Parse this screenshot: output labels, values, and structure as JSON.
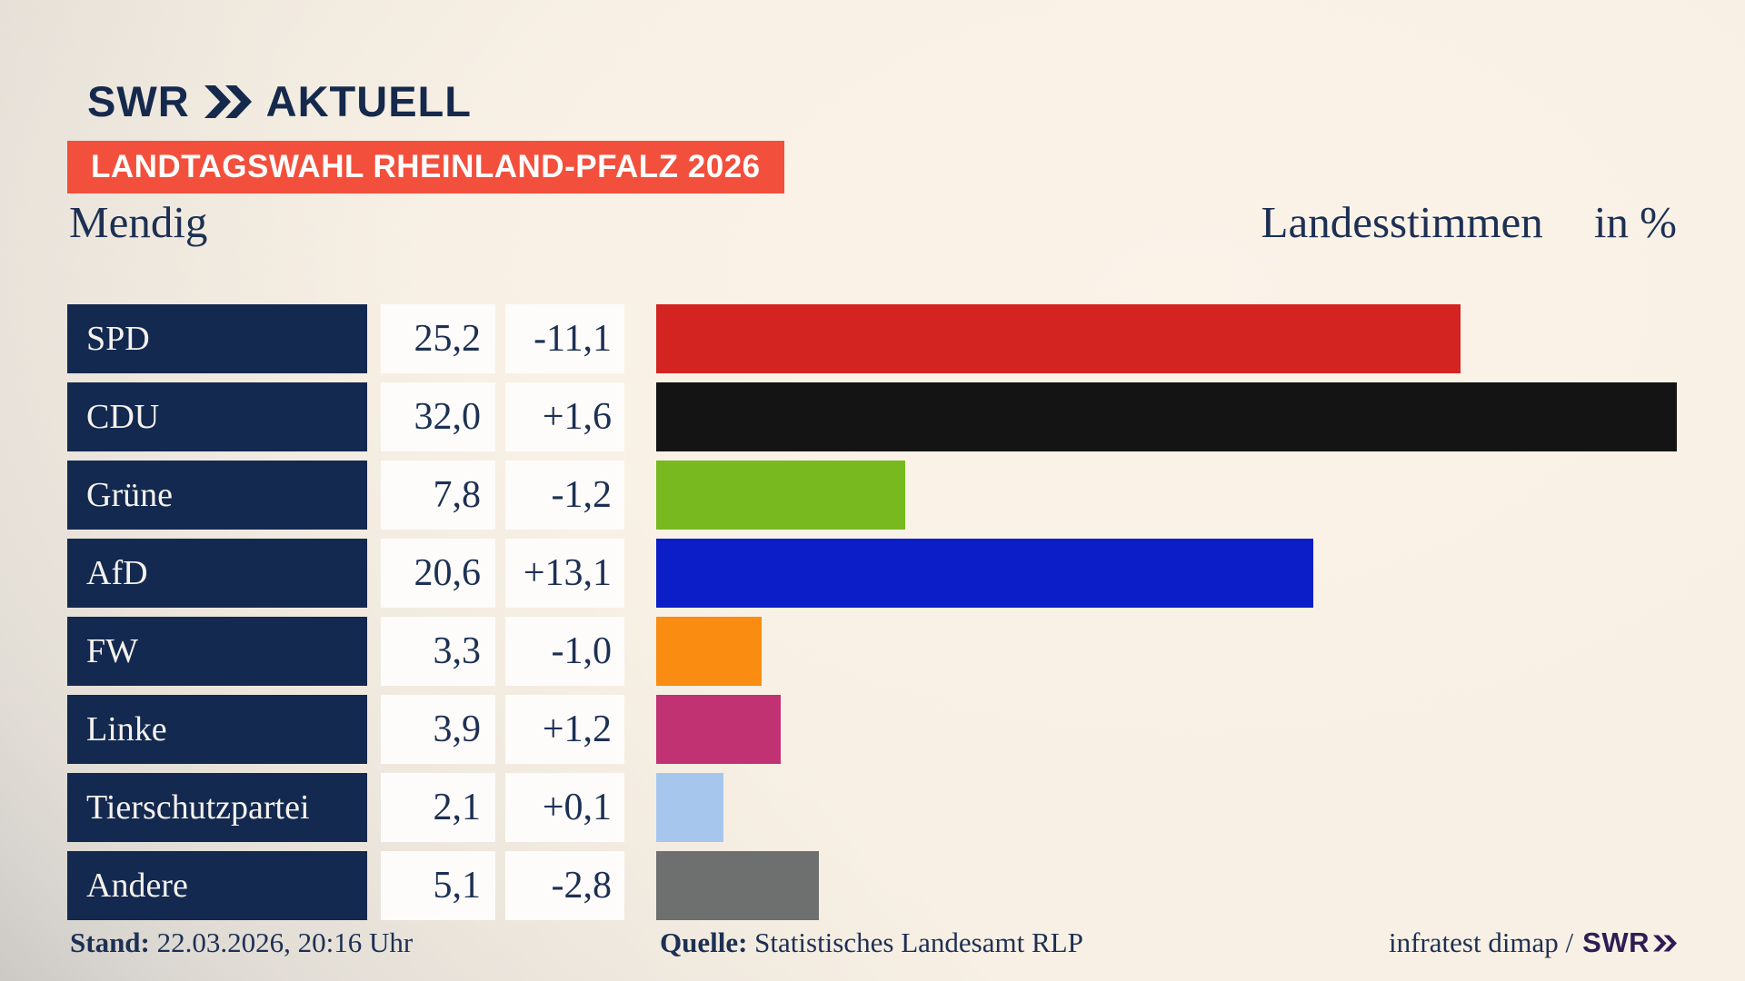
{
  "header": {
    "logo_brand": "SWR",
    "logo_suffix": "AKTUELL",
    "badge": "LANDTAGSWAHL RHEINLAND-PFALZ 2026",
    "title": "Mendig",
    "right_title": "Landesstimmen",
    "unit_label": "in %"
  },
  "chart_data": {
    "type": "bar",
    "orientation": "horizontal",
    "unit": "%",
    "xlim": [
      0,
      32
    ],
    "grid": false,
    "legend": "none",
    "categories": [
      "SPD",
      "CDU",
      "Grüne",
      "AfD",
      "FW",
      "Linke",
      "Tierschutzpartei",
      "Andere"
    ],
    "values": [
      25.2,
      32.0,
      7.8,
      20.6,
      3.3,
      3.9,
      2.1,
      5.1
    ],
    "value_labels": [
      "25,2",
      "32,0",
      "7,8",
      "20,6",
      "3,3",
      "3,9",
      "2,1",
      "5,1"
    ],
    "changes": [
      -11.1,
      1.6,
      -1.2,
      13.1,
      -1.0,
      1.2,
      0.1,
      -2.8
    ],
    "change_labels": [
      "-11,1",
      "+1,6",
      "-1,2",
      "+13,1",
      "-1,0",
      "+1,2",
      "+0,1",
      "-2,8"
    ],
    "bar_colors": [
      "#d32422",
      "#141414",
      "#77b91e",
      "#0c1ec8",
      "#f98c11",
      "#c03272",
      "#a7c6ee",
      "#6e7070"
    ]
  },
  "footer": {
    "stand_label": "Stand:",
    "stand_value": " 22.03.2026, 20:16 Uhr",
    "quelle_label": "Quelle:",
    "quelle_value": " Statistisches Landesamt RLP",
    "credit_text": "infratest dimap /",
    "credit_brand": "SWR"
  },
  "colors": {
    "navy": "#15294d",
    "navy_box": "#132950",
    "navy_text": "#1d3054",
    "badge_red": "#f2503c",
    "box_white": "#fdfcfa",
    "background_cream": "#f8f0e4",
    "credit_purple": "#2e1c55"
  }
}
